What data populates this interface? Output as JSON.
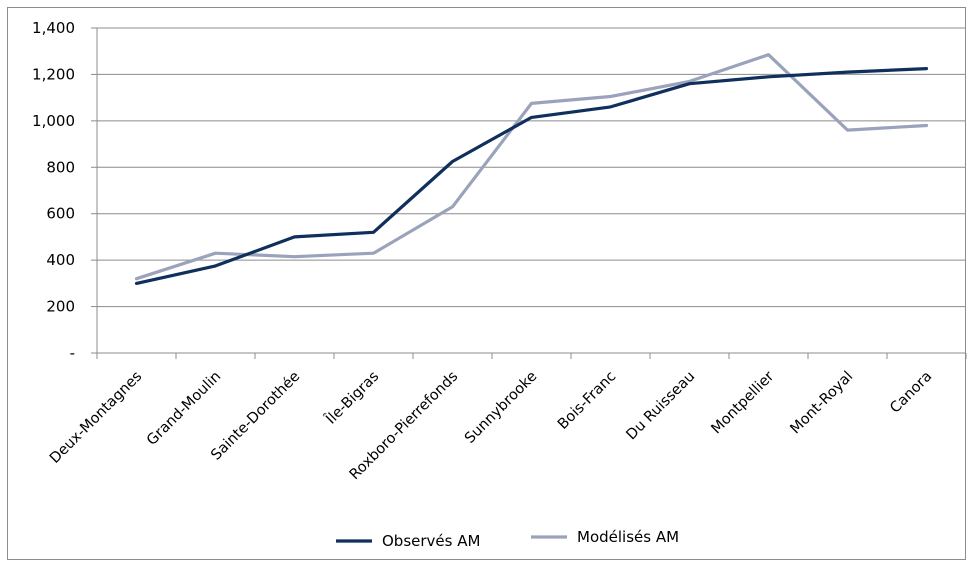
{
  "chart_data": {
    "type": "line",
    "categories": [
      "Deux-Montagnes",
      "Grand-Moulin",
      "Sainte-Dorothée",
      "Île-Bigras",
      "Roxboro-Pierrefonds",
      "Sunnybrooke",
      "Bois-Franc",
      "Du Ruisseau",
      "Montpellier",
      "Mont-Royal",
      "Canora"
    ],
    "series": [
      {
        "name": "Observés AM",
        "color": "#0f2f5c",
        "values": [
          300,
          375,
          500,
          520,
          825,
          1015,
          1060,
          1160,
          1190,
          1210,
          1225
        ]
      },
      {
        "name": "Modélisés AM",
        "color": "#9aa3bb",
        "values": [
          320,
          430,
          415,
          430,
          630,
          1075,
          1105,
          1170,
          1285,
          960,
          980
        ]
      }
    ],
    "y_ticks": [
      "-",
      "200",
      "400",
      "600",
      "800",
      "1,000",
      "1,200",
      "1,400"
    ],
    "ylim": [
      0,
      1400
    ],
    "grid": true,
    "legend_position": "bottom"
  }
}
